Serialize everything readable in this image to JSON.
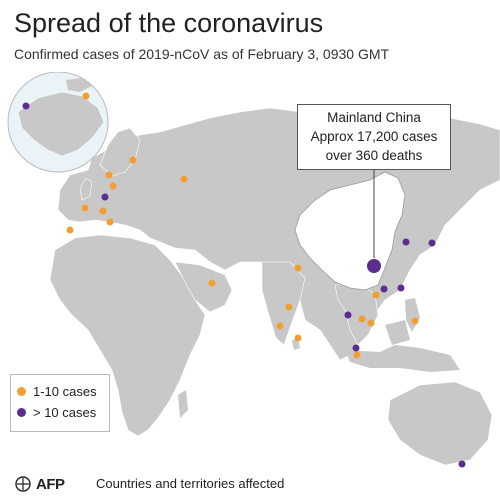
{
  "header": {
    "title": "Spread of the coronavirus",
    "subtitle": "Confirmed cases of 2019-nCoV as of February 3, 0930 GMT"
  },
  "callout": {
    "line1": "Mainland China",
    "line2": "Approx 17,200 cases",
    "line3": "over 360 deaths"
  },
  "legend": {
    "items": [
      {
        "label": "1-10 cases",
        "color": "#f0a030"
      },
      {
        "label": "> 10 cases",
        "color": "#5b2d8e"
      }
    ]
  },
  "footer": {
    "logo": "AFP",
    "note": "Countries and territories affected"
  },
  "colors": {
    "land": "#c8c8c8",
    "china": "#ffffff",
    "low": "#f0a030",
    "high": "#5b2d8e"
  }
}
